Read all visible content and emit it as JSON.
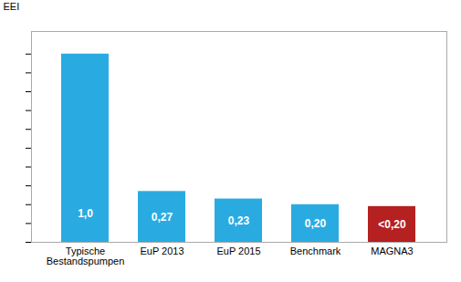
{
  "chart_data": {
    "type": "bar",
    "y_label": "EEI",
    "categories": [
      "Typische\nBestandspumpen",
      "EuP 2013",
      "EuP 2015",
      "Benchmark",
      "MAGNA3"
    ],
    "values": [
      1.0,
      0.27,
      0.23,
      0.2,
      0.19
    ],
    "value_labels": [
      "1,0",
      "0,27",
      "0,23",
      "0,20",
      "<0,20"
    ],
    "colors": [
      "#29abe2",
      "#29abe2",
      "#29abe2",
      "#29abe2",
      "#b52020"
    ],
    "ylim": [
      0,
      1.12
    ],
    "yticks": [
      0,
      0.1,
      0.2,
      0.3,
      0.4,
      0.5,
      0.6,
      0.7,
      0.8,
      0.9,
      1.0
    ],
    "data_labels": true,
    "tick_labels": "x",
    "grid": false
  }
}
